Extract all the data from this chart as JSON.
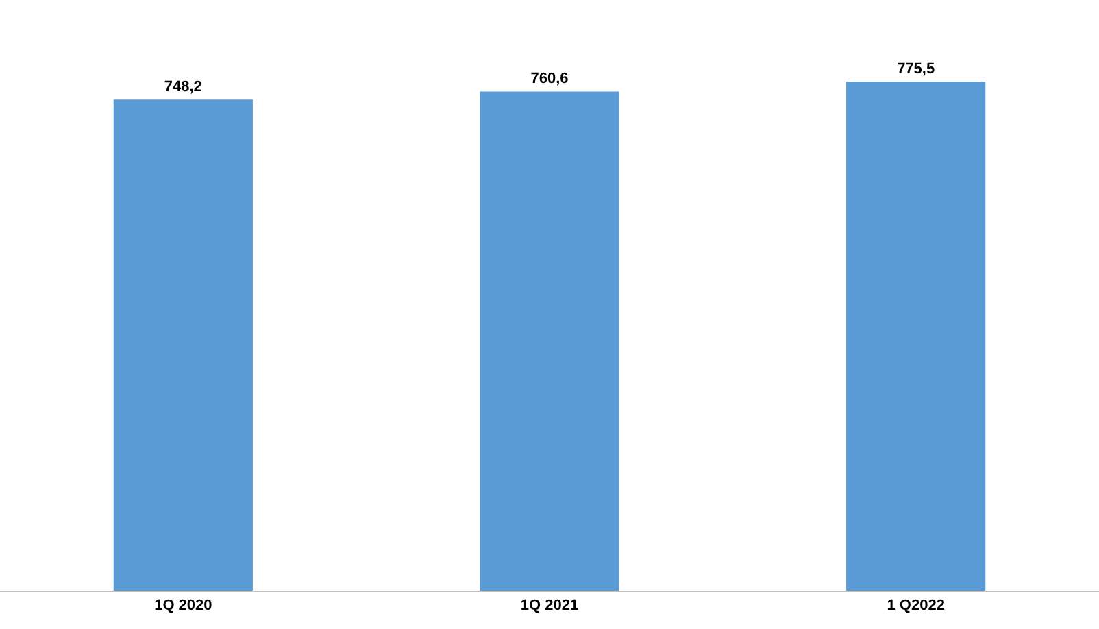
{
  "chart_data": {
    "type": "bar",
    "categories": [
      "1Q 2020",
      "1Q 2021",
      "1 Q2022"
    ],
    "values": [
      748.2,
      760.6,
      775.5
    ],
    "value_labels": [
      "748,2",
      "760,6",
      "775,5"
    ],
    "color": "#5b9bd5",
    "grid": false,
    "tick_labels": "x"
  }
}
